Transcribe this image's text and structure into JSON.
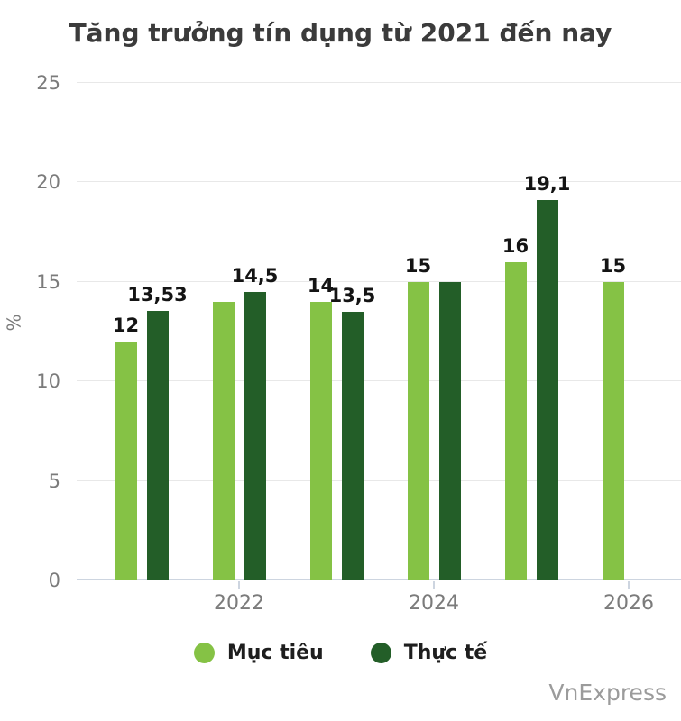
{
  "title": "Tăng trưởng tín dụng từ 2021 đến nay",
  "watermark": "VnExpress",
  "colors": {
    "target": "#85c245",
    "actual": "#235e28",
    "grid": "#e8e8e8",
    "axis": "#cdd5e0",
    "tick_text": "#7b7b7b",
    "title_text": "#3b3b3b",
    "bar_label_text": "#141414",
    "watermark_text": "#9b9b9b"
  },
  "chart_data": {
    "type": "bar",
    "title": "Tăng trưởng tín dụng từ 2021 đến nay",
    "xlabel": "",
    "ylabel": "%",
    "ylim": [
      0,
      25
    ],
    "yticks": [
      0,
      5,
      10,
      15,
      20,
      25
    ],
    "categories": [
      "2021",
      "2022",
      "2023",
      "2024",
      "2025",
      "2026"
    ],
    "xticks": [
      "2022",
      "2024",
      "2026"
    ],
    "series": [
      {
        "name": "Mục tiêu",
        "values": [
          12,
          14,
          14,
          15,
          16,
          15
        ],
        "labels": [
          "12",
          null,
          "14",
          "15",
          "16",
          "15"
        ]
      },
      {
        "name": "Thực tế",
        "values": [
          13.53,
          14.5,
          13.5,
          15,
          19.1,
          null
        ],
        "labels": [
          "13,53",
          "14,5",
          "13,5",
          null,
          "19,1",
          null
        ]
      }
    ],
    "grid": true,
    "legend": [
      "Mục tiêu",
      "Thực tế"
    ],
    "legend_position": "bottom"
  }
}
